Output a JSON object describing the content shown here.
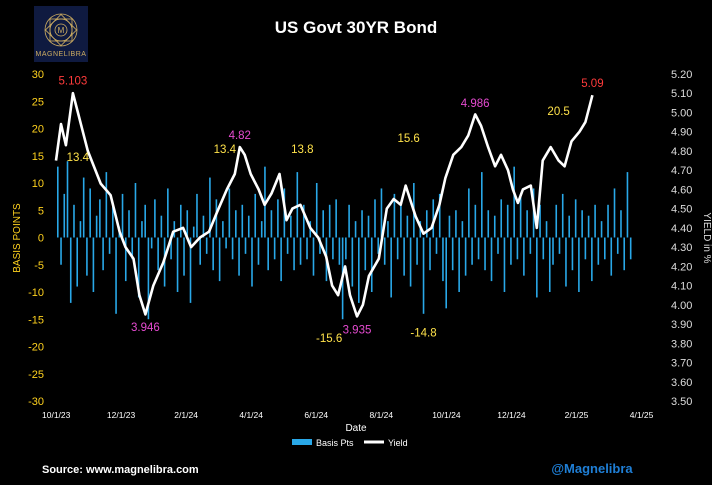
{
  "logo": {
    "text": "MAGNELIBRA",
    "monogram": "M",
    "icon": "mandala-logo-icon"
  },
  "footer": {
    "source": "Source: www.magnelibra.com",
    "handle": "@Magnelibra"
  },
  "colors": {
    "bars": "#29a8e8",
    "line": "#ffffff",
    "left_axis": "#ffd21e",
    "right_axis": "#dddddd",
    "high_annotation": "#ff3b3b",
    "extreme_annotation": "#e64bd1",
    "bp_annotation": "#ffe24a",
    "handle": "#1f7fd6"
  },
  "chart_data": {
    "type": "bar+line",
    "title": "US Govt 30YR Bond",
    "xlabel": "Date",
    "ylabel_left": "BASIS POINTS",
    "ylabel_right": "YIELD in %",
    "ylim_left": [
      -30,
      30
    ],
    "ylim_right": [
      3.5,
      5.2
    ],
    "yticks_left": [
      "30",
      "25",
      "20",
      "15",
      "10",
      "5",
      "0",
      "-5",
      "-10",
      "-15",
      "-20",
      "-25",
      "-30"
    ],
    "yticks_right": [
      "5.20",
      "5.10",
      "5.00",
      "4.90",
      "4.80",
      "4.70",
      "4.60",
      "4.50",
      "4.40",
      "4.30",
      "4.20",
      "4.10",
      "4.00",
      "3.90",
      "3.80",
      "3.70",
      "3.60",
      "3.50"
    ],
    "xticks": [
      "10/1/23",
      "12/1/23",
      "2/1/24",
      "4/1/24",
      "6/1/24",
      "8/1/24",
      "10/1/24",
      "12/1/24",
      "2/1/25",
      "4/1/25"
    ],
    "legend": [
      "Basis Pts",
      "Yield"
    ],
    "yield_series": {
      "name": "Yield",
      "points": [
        [
          0,
          4.75
        ],
        [
          5,
          4.94
        ],
        [
          10,
          4.83
        ],
        [
          17,
          5.1
        ],
        [
          22,
          5.0
        ],
        [
          32,
          4.8
        ],
        [
          45,
          4.63
        ],
        [
          55,
          4.57
        ],
        [
          64,
          4.38
        ],
        [
          70,
          4.3
        ],
        [
          78,
          4.24
        ],
        [
          84,
          4.05
        ],
        [
          90,
          3.95
        ],
        [
          98,
          4.1
        ],
        [
          108,
          4.22
        ],
        [
          118,
          4.38
        ],
        [
          128,
          4.4
        ],
        [
          136,
          4.3
        ],
        [
          145,
          4.35
        ],
        [
          154,
          4.38
        ],
        [
          162,
          4.48
        ],
        [
          172,
          4.6
        ],
        [
          180,
          4.68
        ],
        [
          185,
          4.82
        ],
        [
          190,
          4.78
        ],
        [
          196,
          4.68
        ],
        [
          204,
          4.6
        ],
        [
          210,
          4.52
        ],
        [
          217,
          4.58
        ],
        [
          225,
          4.68
        ],
        [
          232,
          4.44
        ],
        [
          238,
          4.5
        ],
        [
          246,
          4.52
        ],
        [
          256,
          4.4
        ],
        [
          264,
          4.35
        ],
        [
          272,
          4.25
        ],
        [
          278,
          4.1
        ],
        [
          284,
          4.05
        ],
        [
          291,
          4.2
        ],
        [
          296,
          4.05
        ],
        [
          303,
          3.94
        ],
        [
          309,
          4.0
        ],
        [
          315,
          4.15
        ],
        [
          325,
          4.24
        ],
        [
          333,
          4.5
        ],
        [
          340,
          4.55
        ],
        [
          347,
          4.52
        ],
        [
          352,
          4.62
        ],
        [
          362,
          4.46
        ],
        [
          370,
          4.37
        ],
        [
          378,
          4.4
        ],
        [
          386,
          4.52
        ],
        [
          392,
          4.66
        ],
        [
          400,
          4.78
        ],
        [
          408,
          4.82
        ],
        [
          415,
          4.88
        ],
        [
          422,
          4.99
        ],
        [
          428,
          4.93
        ],
        [
          435,
          4.82
        ],
        [
          442,
          4.72
        ],
        [
          448,
          4.78
        ],
        [
          455,
          4.7
        ],
        [
          460,
          4.6
        ],
        [
          465,
          4.53
        ],
        [
          470,
          4.6
        ],
        [
          478,
          4.62
        ],
        [
          484,
          4.4
        ],
        [
          490,
          4.75
        ],
        [
          498,
          4.82
        ],
        [
          506,
          4.75
        ],
        [
          512,
          4.72
        ],
        [
          519,
          4.85
        ],
        [
          527,
          4.9
        ],
        [
          533,
          4.95
        ],
        [
          538,
          5.05
        ],
        [
          540,
          5.09
        ]
      ]
    },
    "basis_points": [
      13,
      -5,
      8,
      14,
      -12,
      6,
      -9,
      3,
      11,
      -7,
      9,
      -10,
      4,
      7,
      -6,
      12,
      -3,
      6,
      -14,
      2,
      8,
      -8,
      5,
      -4,
      10,
      -11,
      3,
      6,
      -15,
      -2,
      7,
      -6,
      4,
      -9,
      9,
      -4,
      3,
      -10,
      6,
      -7,
      5,
      -12,
      2,
      8,
      -5,
      4,
      -3,
      11,
      -6,
      7,
      -8,
      3,
      -2,
      9,
      -4,
      5,
      -7,
      6,
      -3,
      4,
      -9,
      8,
      -5,
      3,
      13,
      -6,
      5,
      -4,
      7,
      -8,
      9,
      -3,
      4,
      -6,
      12,
      -5,
      6,
      -4,
      3,
      -7,
      10,
      -3,
      5,
      -8,
      6,
      -4,
      7,
      -5,
      -15,
      -4,
      6,
      -9,
      3,
      -12,
      5,
      -6,
      4,
      -10,
      7,
      -3,
      9,
      -5,
      3,
      -11,
      8,
      -4,
      6,
      -7,
      4,
      -9,
      10,
      -5,
      3,
      -14,
      5,
      -6,
      7,
      -3,
      8,
      -8,
      -13,
      4,
      -6,
      5,
      -10,
      3,
      -7,
      9,
      -5,
      6,
      -4,
      12,
      -6,
      5,
      -8,
      4,
      -3,
      7,
      -10,
      6,
      -5,
      13,
      -4,
      8,
      -7,
      5,
      -3,
      9,
      -11,
      6,
      -4,
      3,
      -10,
      -5,
      6,
      -3,
      8,
      -9,
      4,
      -6,
      7,
      -10,
      5,
      -4,
      4,
      -8,
      6,
      -5,
      3,
      -4,
      6,
      -7,
      9,
      -3,
      5,
      -6,
      12,
      -4
    ],
    "annotations": [
      {
        "text": "5.103",
        "color": "high",
        "x": 17,
        "y_yield": 5.103
      },
      {
        "text": "13.4",
        "color": "bp",
        "x": 22,
        "y_bp": 14
      },
      {
        "text": "3.946",
        "color": "extreme",
        "x": 90,
        "y_yield": 3.946
      },
      {
        "text": "13.4",
        "color": "bp",
        "x": 170,
        "y_bp": 15.5
      },
      {
        "text": "4.82",
        "color": "extreme",
        "x": 185,
        "y_yield": 4.82
      },
      {
        "text": "13.8",
        "color": "bp",
        "x": 248,
        "y_bp": 15.5
      },
      {
        "text": "-15.6",
        "color": "bp",
        "x": 275,
        "y_bp": -17
      },
      {
        "text": "3.935",
        "color": "extreme",
        "x": 303,
        "y_yield": 3.935
      },
      {
        "text": "15.6",
        "color": "bp",
        "x": 355,
        "y_bp": 17.5
      },
      {
        "text": "-14.8",
        "color": "bp",
        "x": 370,
        "y_bp": -16
      },
      {
        "text": "4.986",
        "color": "extreme",
        "x": 422,
        "y_yield": 4.986
      },
      {
        "text": "20.5",
        "color": "bp",
        "x": 506,
        "y_bp": 22.5
      },
      {
        "text": "5.09",
        "color": "high",
        "x": 540,
        "y_yield": 5.09
      }
    ],
    "x_domain": [
      0,
      600
    ]
  }
}
